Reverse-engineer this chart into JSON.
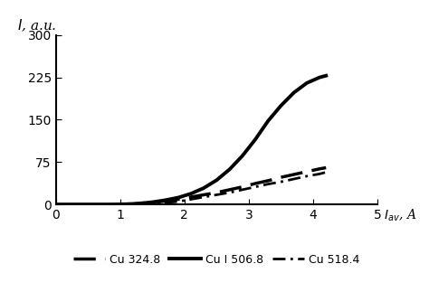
{
  "xlim": [
    0,
    5
  ],
  "ylim": [
    0,
    300
  ],
  "xticks": [
    0,
    1,
    2,
    3,
    4,
    5
  ],
  "yticks": [
    0,
    75,
    150,
    225,
    300
  ],
  "background_color": "#ffffff",
  "series": [
    {
      "label": "Cu 324.8",
      "color": "#000000",
      "linewidth": 2.5,
      "x": [
        1.1,
        1.3,
        1.5,
        1.7,
        1.9,
        2.1,
        2.3,
        2.5,
        2.7,
        2.9,
        3.1,
        3.3,
        3.5,
        3.7,
        3.9,
        4.1,
        4.2
      ],
      "y": [
        0,
        1,
        3,
        6,
        9,
        13,
        17,
        21,
        26,
        31,
        37,
        42,
        48,
        53,
        58,
        63,
        65
      ]
    },
    {
      "label": "Cu I 506.8",
      "color": "#000000",
      "linewidth": 2.8,
      "x": [
        0.0,
        0.5,
        0.8,
        1.0,
        1.1,
        1.2,
        1.3,
        1.4,
        1.5,
        1.7,
        1.9,
        2.1,
        2.3,
        2.5,
        2.7,
        2.9,
        3.1,
        3.3,
        3.5,
        3.7,
        3.9,
        4.1,
        4.2
      ],
      "y": [
        0,
        0,
        0,
        0.2,
        0.5,
        1.0,
        1.8,
        2.8,
        4.0,
        7.5,
        12,
        19,
        29,
        43,
        62,
        86,
        115,
        148,
        175,
        198,
        215,
        225,
        228
      ]
    },
    {
      "label": "Cu 518.4",
      "color": "#000000",
      "linewidth": 2.0,
      "x": [
        1.3,
        1.6,
        1.9,
        2.1,
        2.3,
        2.5,
        2.7,
        2.9,
        3.1,
        3.3,
        3.5,
        3.7,
        3.9,
        4.1,
        4.2
      ],
      "y": [
        0,
        2,
        5,
        9,
        13,
        17,
        21,
        26,
        31,
        36,
        40,
        45,
        50,
        54,
        57
      ]
    }
  ]
}
